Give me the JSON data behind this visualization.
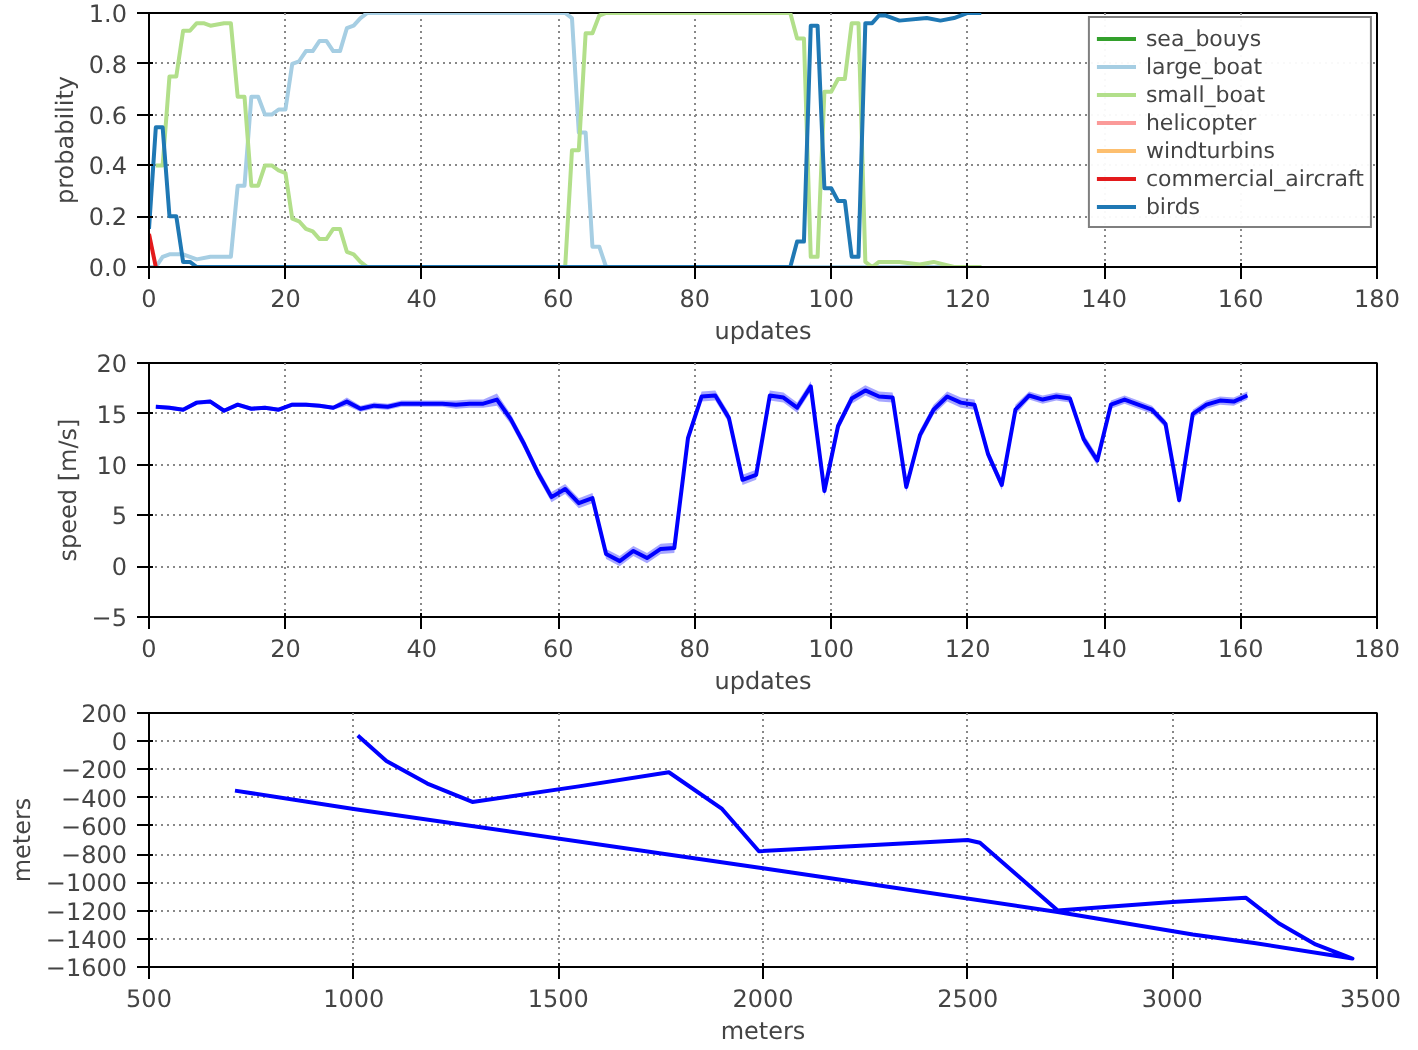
{
  "chart_data": [
    {
      "type": "line",
      "xlabel": "updates",
      "ylabel": "probability",
      "xlim": [
        0,
        180
      ],
      "ylim": [
        0,
        1
      ],
      "xticks": [
        0,
        20,
        40,
        60,
        80,
        100,
        120,
        140,
        160,
        180
      ],
      "yticks": [
        {
          "value": 0,
          "label": "0.0"
        },
        {
          "value": 0.2,
          "label": "0.2"
        },
        {
          "value": 0.4,
          "label": "0.4"
        },
        {
          "value": 0.6,
          "label": "0.6"
        },
        {
          "value": 0.8,
          "label": "0.8"
        },
        {
          "value": 1,
          "label": "1.0"
        }
      ],
      "grid": true,
      "legend": "top right",
      "series": [
        {
          "name": "sea_bouys",
          "color": "#33a02c"
        },
        {
          "name": "large_boat",
          "color": "#a6cee3",
          "x": [
            0,
            1,
            2,
            3,
            5,
            7,
            9,
            11,
            12,
            13,
            14,
            15,
            16,
            17,
            18,
            19,
            20,
            21,
            22,
            23,
            24,
            25,
            26,
            27,
            28,
            29,
            30,
            31,
            32,
            61,
            62,
            63,
            64,
            65,
            66,
            67,
            122
          ],
          "values": [
            0,
            0,
            0.04,
            0.05,
            0.05,
            0.03,
            0.04,
            0.04,
            0.04,
            0.32,
            0.32,
            0.67,
            0.67,
            0.6,
            0.6,
            0.62,
            0.62,
            0.8,
            0.81,
            0.85,
            0.85,
            0.89,
            0.89,
            0.85,
            0.85,
            0.94,
            0.95,
            0.98,
            1,
            1,
            0.98,
            0.53,
            0.53,
            0.08,
            0.08,
            0,
            0
          ]
        },
        {
          "name": "small_boat",
          "color": "#b2df8a",
          "x": [
            1,
            2,
            3,
            4,
            5,
            6,
            7,
            8,
            9,
            11,
            12,
            13,
            14,
            15,
            16,
            17,
            18,
            19,
            20,
            21,
            22,
            23,
            24,
            25,
            26,
            27,
            28,
            29,
            30,
            31,
            32,
            61,
            62,
            63,
            64,
            65,
            66,
            67,
            94,
            95,
            96,
            97,
            98,
            99,
            100,
            101,
            102,
            103,
            104,
            105,
            106,
            107,
            110,
            113,
            115,
            118,
            122
          ],
          "values": [
            0.4,
            0.4,
            0.75,
            0.75,
            0.93,
            0.93,
            0.96,
            0.96,
            0.95,
            0.96,
            0.96,
            0.67,
            0.67,
            0.32,
            0.32,
            0.4,
            0.4,
            0.38,
            0.37,
            0.19,
            0.18,
            0.15,
            0.14,
            0.11,
            0.11,
            0.15,
            0.15,
            0.06,
            0.05,
            0.02,
            0,
            0,
            0.46,
            0.46,
            0.92,
            0.92,
            0.99,
            1,
            1,
            0.9,
            0.9,
            0.04,
            0.04,
            0.69,
            0.69,
            0.74,
            0.74,
            0.96,
            0.96,
            0.02,
            0,
            0.02,
            0.02,
            0.01,
            0.02,
            0,
            0
          ]
        },
        {
          "name": "helicopter",
          "color": "#fb9a99"
        },
        {
          "name": "windturbins",
          "color": "#fdbf6f"
        },
        {
          "name": "commercial_aircraft",
          "color": "#e31a1c",
          "x": [
            0,
            1
          ],
          "values": [
            0.13,
            0
          ]
        },
        {
          "name": "birds",
          "color": "#1f78b4",
          "x": [
            0,
            1,
            2,
            3,
            4,
            5,
            6,
            7,
            94,
            95,
            96,
            97,
            98,
            99,
            100,
            101,
            102,
            103,
            104,
            105,
            106,
            107,
            108,
            110,
            114,
            116,
            118,
            120,
            122
          ],
          "values": [
            0.15,
            0.55,
            0.55,
            0.2,
            0.2,
            0.02,
            0.02,
            0,
            0,
            0.1,
            0.1,
            0.95,
            0.95,
            0.31,
            0.31,
            0.26,
            0.26,
            0.04,
            0.04,
            0.96,
            0.96,
            0.99,
            0.99,
            0.97,
            0.98,
            0.97,
            0.98,
            1,
            1
          ]
        }
      ]
    },
    {
      "type": "line",
      "xlabel": "updates",
      "ylabel": "speed [m/s]",
      "xlim": [
        0,
        180
      ],
      "ylim": [
        -5,
        20
      ],
      "xticks": [
        0,
        20,
        40,
        60,
        80,
        100,
        120,
        140,
        160,
        180
      ],
      "yticks": [
        -5,
        0,
        5,
        10,
        15,
        20
      ],
      "grid": true,
      "series": [
        {
          "color": "#0000ff",
          "x": [
            1,
            3,
            5,
            7,
            9,
            11,
            13,
            15,
            17,
            19,
            21,
            23,
            25,
            27,
            29,
            31,
            33,
            35,
            37,
            39,
            41,
            43,
            45,
            47,
            49,
            51,
            53,
            55,
            57,
            59,
            61,
            63,
            65,
            67,
            69,
            71,
            73,
            75,
            77,
            79,
            81,
            83,
            85,
            87,
            89,
            91,
            93,
            95,
            97,
            99,
            101,
            103,
            105,
            107,
            109,
            111,
            113,
            115,
            117,
            119,
            121,
            123,
            125,
            127,
            129,
            131,
            133,
            135,
            137,
            139,
            141,
            143,
            145,
            147,
            149,
            151,
            153,
            155,
            157,
            159,
            161
          ],
          "values": [
            15.7,
            15.6,
            15.4,
            16.1,
            16.2,
            15.3,
            15.9,
            15.5,
            15.6,
            15.4,
            15.9,
            15.9,
            15.8,
            15.6,
            16.2,
            15.5,
            15.8,
            15.7,
            16,
            16,
            16,
            16,
            15.9,
            16,
            16,
            16.4,
            14.5,
            12,
            9.2,
            6.8,
            7.6,
            6.2,
            6.7,
            1.2,
            0.5,
            1.5,
            0.8,
            1.7,
            1.8,
            12.6,
            16.7,
            16.8,
            14.6,
            8.5,
            9,
            16.8,
            16.6,
            15.6,
            17.7,
            7.4,
            13.8,
            16.5,
            17.3,
            16.7,
            16.6,
            7.8,
            12.9,
            15.4,
            16.7,
            16.1,
            15.9,
            11,
            8,
            15.4,
            16.8,
            16.4,
            16.7,
            16.5,
            12.5,
            10.4,
            15.9,
            16.4,
            15.9,
            15.4,
            14,
            6.5,
            15,
            15.9,
            16.3,
            16.2,
            16.8
          ],
          "lower": [
            15.5,
            15.4,
            15.2,
            15.9,
            16,
            15.1,
            15.7,
            15.3,
            15.4,
            15.2,
            15.7,
            15.7,
            15.6,
            15.4,
            15.8,
            15.2,
            15.5,
            15.4,
            15.7,
            15.7,
            15.7,
            15.7,
            15.5,
            15.6,
            15.6,
            15.8,
            14,
            11.5,
            8.7,
            6.3,
            7.1,
            5.7,
            6.2,
            0.7,
            0,
            1,
            0.3,
            1.2,
            1.3,
            12.1,
            16.2,
            16.3,
            14.1,
            8,
            8.5,
            16.3,
            16.1,
            15.1,
            17.2,
            6.9,
            13.3,
            16,
            16.8,
            16.2,
            16.1,
            7.3,
            12.4,
            14.9,
            16.2,
            15.6,
            15.4,
            10.5,
            7.5,
            14.9,
            16.4,
            16,
            16.3,
            16.1,
            12,
            9.9,
            15.5,
            16,
            15.5,
            15,
            13.6,
            6.1,
            14.6,
            15.5,
            15.9,
            15.8,
            16.4
          ],
          "upper": [
            15.9,
            15.8,
            15.6,
            16.3,
            16.4,
            15.5,
            16.1,
            15.7,
            15.8,
            15.6,
            16.1,
            16.1,
            16,
            15.8,
            16.6,
            15.8,
            16.1,
            16,
            16.3,
            16.3,
            16.3,
            16.3,
            16.3,
            16.4,
            16.4,
            17,
            15,
            12.5,
            9.7,
            7.3,
            8.1,
            6.7,
            7.2,
            1.7,
            1,
            2,
            1.3,
            2.2,
            2.3,
            13.1,
            17.2,
            17.3,
            15.1,
            9,
            9.5,
            17.3,
            17.1,
            16.1,
            18.2,
            7.9,
            14.3,
            17,
            17.8,
            17.2,
            17.1,
            8.3,
            13.4,
            15.9,
            17.2,
            16.6,
            16.4,
            11.5,
            8.5,
            15.9,
            17.2,
            16.8,
            17.1,
            16.9,
            13,
            10.9,
            16.3,
            16.8,
            16.3,
            15.8,
            14.4,
            6.9,
            15.4,
            16.3,
            16.7,
            16.6,
            17.2
          ]
        }
      ]
    },
    {
      "type": "line",
      "xlabel": "meters",
      "ylabel": "meters",
      "xlim": [
        500,
        3500
      ],
      "ylim": [
        -1600,
        200
      ],
      "xticks": [
        500,
        1000,
        1500,
        2000,
        2500,
        3000,
        3500
      ],
      "yticks": [
        -1600,
        -1400,
        -1200,
        -1000,
        -800,
        -600,
        -400,
        -200,
        0,
        200
      ],
      "grid": true,
      "series": [
        {
          "color": "#0000ff",
          "x": [
            1010,
            1080,
            1180,
            1290,
            1550,
            1770,
            1900,
            1990,
            2500,
            2530,
            2720,
            3000,
            3180,
            3260,
            3350,
            3440,
            3200,
            3050,
            2720,
            2000,
            1000,
            710
          ],
          "values": [
            40,
            -140,
            -300,
            -430,
            -320,
            -220,
            -480,
            -780,
            -700,
            -720,
            -1200,
            -1140,
            -1110,
            -1290,
            -1440,
            -1540,
            -1430,
            -1370,
            -1210,
            -900,
            -480,
            -350
          ]
        }
      ]
    }
  ]
}
